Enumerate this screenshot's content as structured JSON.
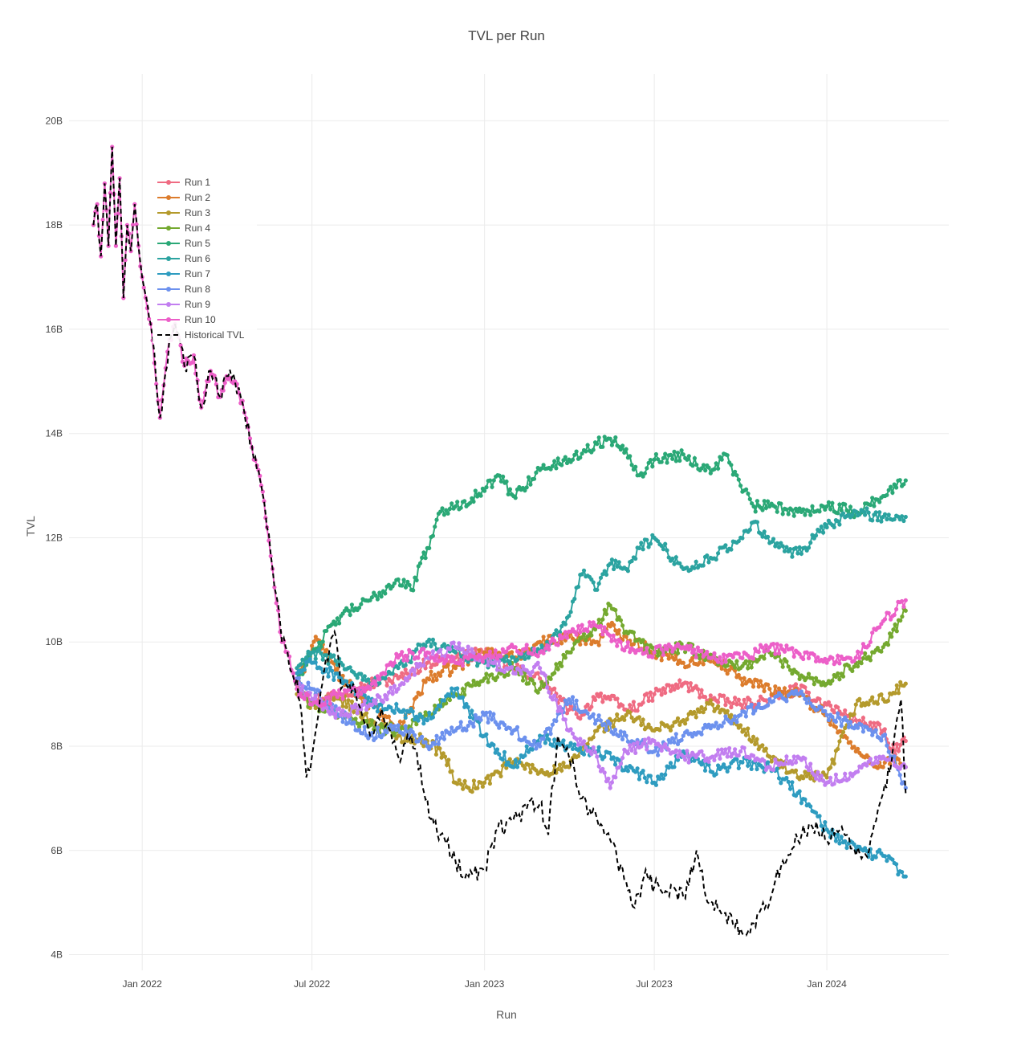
{
  "chart_data": {
    "type": "line",
    "title": "TVL per Run",
    "xlabel": "Run",
    "ylabel": "TVL",
    "x_range": [
      "2021-10-15",
      "2024-05-10"
    ],
    "ylim": [
      3.7,
      20.9
    ],
    "x_ticks": [
      {
        "date": "2022-01-01",
        "label": "Jan 2022"
      },
      {
        "date": "2022-07-01",
        "label": "Jul 2022"
      },
      {
        "date": "2023-01-01",
        "label": "Jan 2023"
      },
      {
        "date": "2023-07-01",
        "label": "Jul 2023"
      },
      {
        "date": "2024-01-01",
        "label": "Jan 2024"
      }
    ],
    "y_ticks": [
      {
        "value": 4,
        "label": "4B"
      },
      {
        "value": 6,
        "label": "6B"
      },
      {
        "value": 8,
        "label": "8B"
      },
      {
        "value": 10,
        "label": "10B"
      },
      {
        "value": 12,
        "label": "12B"
      },
      {
        "value": 14,
        "label": "14B"
      },
      {
        "value": 16,
        "label": "16B"
      },
      {
        "value": 18,
        "label": "18B"
      },
      {
        "value": 20,
        "label": "20B"
      }
    ],
    "grid": true,
    "legend_position": "top-left",
    "historical": {
      "name": "Historical TVL",
      "color": "#000000",
      "style": "dashed",
      "x": [
        "2021-11-10",
        "2021-11-14",
        "2021-11-18",
        "2021-11-22",
        "2021-11-26",
        "2021-11-30",
        "2021-12-04",
        "2021-12-08",
        "2021-12-12",
        "2021-12-16",
        "2021-12-20",
        "2021-12-24",
        "2021-12-28",
        "2022-01-01",
        "2022-01-10",
        "2022-01-20",
        "2022-01-30",
        "2022-02-05",
        "2022-02-15",
        "2022-02-25",
        "2022-03-05",
        "2022-03-15",
        "2022-03-25",
        "2022-04-01",
        "2022-04-10",
        "2022-04-20",
        "2022-04-30",
        "2022-05-05",
        "2022-05-08",
        "2022-05-11",
        "2022-05-14",
        "2022-05-20",
        "2022-05-30",
        "2022-06-05",
        "2022-06-10",
        "2022-06-13",
        "2022-06-15",
        "2022-06-20",
        "2022-06-25",
        "2022-07-01",
        "2022-07-10",
        "2022-07-20",
        "2022-07-25",
        "2022-08-01",
        "2022-08-10",
        "2022-08-20",
        "2022-09-01",
        "2022-09-15",
        "2022-10-01",
        "2022-10-15",
        "2022-11-01",
        "2022-11-05",
        "2022-11-08",
        "2022-11-15",
        "2022-12-01",
        "2022-12-15",
        "2023-01-01",
        "2023-01-15",
        "2023-02-01",
        "2023-02-15",
        "2023-03-01",
        "2023-03-10",
        "2023-03-20",
        "2023-04-01",
        "2023-04-15",
        "2023-05-01",
        "2023-05-15",
        "2023-06-01",
        "2023-06-10",
        "2023-06-20",
        "2023-07-01",
        "2023-07-15",
        "2023-08-01",
        "2023-08-15",
        "2023-08-25",
        "2023-09-01",
        "2023-09-15",
        "2023-10-01",
        "2023-10-15",
        "2023-10-25",
        "2023-11-01",
        "2023-11-15",
        "2023-12-01",
        "2023-12-15",
        "2024-01-01",
        "2024-01-15",
        "2024-02-01",
        "2024-02-15",
        "2024-03-01",
        "2024-03-10",
        "2024-03-20",
        "2024-03-25"
      ],
      "y": [
        18.0,
        18.4,
        17.4,
        18.8,
        17.6,
        19.5,
        17.6,
        18.9,
        16.6,
        18.0,
        17.5,
        18.4,
        17.6,
        17.0,
        16.1,
        14.3,
        15.8,
        16.1,
        15.3,
        15.5,
        14.5,
        15.2,
        14.7,
        15.1,
        15.0,
        14.4,
        13.5,
        13.3,
        13.0,
        12.7,
        12.2,
        11.4,
        10.0,
        9.8,
        9.4,
        9.2,
        9.3,
        8.6,
        7.4,
        7.8,
        9.0,
        9.9,
        10.2,
        9.1,
        9.2,
        8.8,
        8.2,
        8.6,
        7.8,
        8.2,
        7.0,
        6.6,
        6.5,
        6.3,
        5.8,
        5.5,
        5.6,
        6.4,
        6.6,
        6.8,
        6.9,
        6.3,
        8.2,
        7.8,
        7.0,
        6.6,
        6.2,
        5.4,
        4.9,
        5.5,
        5.3,
        5.2,
        5.1,
        6.0,
        5.1,
        5.0,
        4.8,
        4.5,
        4.6,
        5.0,
        5.0,
        5.8,
        6.2,
        6.5,
        6.2,
        6.4,
        5.9,
        6.0,
        7.1,
        7.7,
        8.9,
        7.1
      ]
    },
    "series": [
      {
        "name": "Run 1",
        "color": "#ef6b82",
        "x": [
          "2022-06-15",
          "2022-07-01",
          "2022-08-01",
          "2022-09-01",
          "2022-10-01",
          "2022-11-01",
          "2022-12-01",
          "2023-01-01",
          "2023-02-01",
          "2023-03-01",
          "2023-04-01",
          "2023-04-15",
          "2023-05-01",
          "2023-05-15",
          "2023-06-01",
          "2023-06-15",
          "2023-07-01",
          "2023-08-01",
          "2023-09-01",
          "2023-10-01",
          "2023-11-01",
          "2023-12-01",
          "2024-01-01",
          "2024-02-01",
          "2024-03-01",
          "2024-03-10",
          "2024-03-25"
        ],
        "y": [
          9.2,
          8.9,
          9.0,
          9.2,
          9.3,
          9.6,
          9.7,
          9.8,
          9.5,
          9.3,
          8.7,
          8.6,
          9.0,
          8.9,
          8.7,
          8.8,
          9.0,
          9.2,
          8.9,
          8.8,
          8.9,
          9.1,
          8.8,
          8.5,
          8.3,
          7.9,
          8.1
        ]
      },
      {
        "name": "Run 2",
        "color": "#dc7c2c",
        "x": [
          "2022-06-15",
          "2022-06-25",
          "2022-07-05",
          "2022-08-01",
          "2022-09-01",
          "2022-10-01",
          "2022-11-01",
          "2022-12-01",
          "2023-01-01",
          "2023-02-01",
          "2023-03-01",
          "2023-04-01",
          "2023-05-01",
          "2023-05-15",
          "2023-06-01",
          "2023-07-01",
          "2023-08-01",
          "2023-09-01",
          "2023-10-01",
          "2023-11-01",
          "2023-12-01",
          "2024-01-01",
          "2024-02-01",
          "2024-03-01",
          "2024-03-10",
          "2024-03-25"
        ],
        "y": [
          9.2,
          9.6,
          10.1,
          9.3,
          8.8,
          8.3,
          9.3,
          9.5,
          9.8,
          9.7,
          10.0,
          10.1,
          10.0,
          10.3,
          10.1,
          9.8,
          9.6,
          9.7,
          9.3,
          9.1,
          9.0,
          8.6,
          7.9,
          7.6,
          7.8,
          7.6
        ]
      },
      {
        "name": "Run 3",
        "color": "#b49a2c",
        "x": [
          "2022-06-15",
          "2022-07-01",
          "2022-08-01",
          "2022-09-01",
          "2022-10-01",
          "2022-11-01",
          "2022-11-20",
          "2022-12-01",
          "2022-12-15",
          "2023-01-01",
          "2023-02-01",
          "2023-03-01",
          "2023-04-01",
          "2023-05-01",
          "2023-06-01",
          "2023-07-01",
          "2023-08-01",
          "2023-09-01",
          "2023-10-01",
          "2023-11-01",
          "2023-12-01",
          "2024-01-01",
          "2024-02-01",
          "2024-03-01",
          "2024-03-10",
          "2024-03-25"
        ],
        "y": [
          9.0,
          8.8,
          8.9,
          8.5,
          8.2,
          8.1,
          7.8,
          7.3,
          7.2,
          7.3,
          7.7,
          7.5,
          7.6,
          8.3,
          8.6,
          8.3,
          8.5,
          8.8,
          8.4,
          7.8,
          7.4,
          7.4,
          8.8,
          8.9,
          9.0,
          9.2
        ]
      },
      {
        "name": "Run 4",
        "color": "#74a92f",
        "x": [
          "2022-06-15",
          "2022-07-01",
          "2022-08-01",
          "2022-09-01",
          "2022-10-01",
          "2022-11-01",
          "2022-12-01",
          "2023-01-01",
          "2023-02-01",
          "2023-03-01",
          "2023-04-01",
          "2023-05-01",
          "2023-05-15",
          "2023-06-01",
          "2023-07-01",
          "2023-08-01",
          "2023-09-01",
          "2023-10-01",
          "2023-11-01",
          "2023-12-01",
          "2024-01-01",
          "2024-02-01",
          "2024-03-01",
          "2024-03-10",
          "2024-03-25"
        ],
        "y": [
          9.1,
          8.8,
          8.6,
          8.4,
          8.3,
          8.6,
          9.0,
          9.3,
          9.5,
          9.1,
          9.8,
          10.3,
          10.7,
          10.2,
          9.8,
          9.9,
          9.7,
          9.5,
          9.8,
          9.4,
          9.2,
          9.6,
          9.9,
          10.1,
          10.6
        ]
      },
      {
        "name": "Run 5",
        "color": "#2aa876",
        "x": [
          "2022-06-15",
          "2022-07-01",
          "2022-08-01",
          "2022-09-01",
          "2022-10-01",
          "2022-10-15",
          "2022-11-01",
          "2022-11-15",
          "2022-12-01",
          "2023-01-01",
          "2023-01-15",
          "2023-02-01",
          "2023-03-01",
          "2023-04-01",
          "2023-05-01",
          "2023-05-15",
          "2023-06-01",
          "2023-06-15",
          "2023-07-01",
          "2023-08-01",
          "2023-08-15",
          "2023-09-01",
          "2023-09-15",
          "2023-10-01",
          "2023-10-15",
          "2023-11-01",
          "2023-12-01",
          "2024-01-01",
          "2024-02-01",
          "2024-03-01",
          "2024-03-25"
        ],
        "y": [
          9.3,
          9.8,
          10.5,
          10.8,
          11.2,
          11.0,
          11.8,
          12.5,
          12.6,
          12.9,
          13.2,
          12.8,
          13.3,
          13.5,
          13.8,
          13.9,
          13.7,
          13.2,
          13.5,
          13.6,
          13.4,
          13.3,
          13.6,
          13.0,
          12.6,
          12.6,
          12.5,
          12.6,
          12.5,
          12.8,
          13.1
        ]
      },
      {
        "name": "Run 6",
        "color": "#2ba3a0",
        "x": [
          "2022-06-15",
          "2022-07-01",
          "2022-08-01",
          "2022-09-01",
          "2022-10-01",
          "2022-11-01",
          "2022-12-01",
          "2023-01-01",
          "2023-02-01",
          "2023-03-01",
          "2023-04-01",
          "2023-04-15",
          "2023-05-01",
          "2023-05-15",
          "2023-06-01",
          "2023-06-15",
          "2023-07-01",
          "2023-08-01",
          "2023-09-01",
          "2023-10-01",
          "2023-10-15",
          "2023-11-01",
          "2023-12-01",
          "2024-01-01",
          "2024-02-01",
          "2024-03-01",
          "2024-03-25"
        ],
        "y": [
          9.5,
          9.8,
          9.6,
          9.2,
          9.5,
          10.0,
          9.8,
          9.6,
          9.7,
          9.8,
          10.5,
          11.3,
          11.0,
          11.5,
          11.4,
          11.8,
          12.0,
          11.4,
          11.6,
          12.0,
          12.3,
          11.9,
          11.7,
          12.2,
          12.5,
          12.4,
          12.4
        ]
      },
      {
        "name": "Run 7",
        "color": "#2e9cc0",
        "x": [
          "2022-06-15",
          "2022-07-01",
          "2022-08-01",
          "2022-09-01",
          "2022-10-01",
          "2022-11-01",
          "2022-12-01",
          "2023-01-01",
          "2023-02-01",
          "2023-03-01",
          "2023-04-01",
          "2023-05-01",
          "2023-06-01",
          "2023-07-01",
          "2023-08-01",
          "2023-09-01",
          "2023-10-01",
          "2023-11-01",
          "2023-12-01",
          "2024-01-01",
          "2024-02-01",
          "2024-03-01",
          "2024-03-25"
        ],
        "y": [
          9.4,
          9.6,
          9.3,
          8.8,
          8.7,
          8.5,
          9.1,
          8.2,
          7.6,
          8.2,
          8.0,
          7.9,
          7.6,
          7.3,
          7.9,
          7.5,
          7.7,
          7.6,
          7.1,
          6.4,
          6.0,
          5.9,
          5.5
        ]
      },
      {
        "name": "Run 8",
        "color": "#6c91ee",
        "x": [
          "2022-06-15",
          "2022-07-01",
          "2022-08-01",
          "2022-09-01",
          "2022-10-01",
          "2022-11-01",
          "2022-12-01",
          "2023-01-01",
          "2023-02-01",
          "2023-03-01",
          "2023-04-01",
          "2023-05-01",
          "2023-06-01",
          "2023-07-01",
          "2023-08-01",
          "2023-09-01",
          "2023-10-01",
          "2023-11-01",
          "2023-12-01",
          "2024-01-01",
          "2024-02-01",
          "2024-03-01",
          "2024-03-25"
        ],
        "y": [
          9.3,
          9.1,
          8.6,
          8.2,
          8.4,
          8.0,
          8.3,
          8.6,
          8.3,
          8.0,
          8.9,
          8.5,
          8.2,
          7.9,
          8.2,
          8.4,
          8.6,
          8.9,
          9.0,
          8.6,
          8.4,
          8.2,
          7.2
        ]
      },
      {
        "name": "Run 9",
        "color": "#c27ef0",
        "x": [
          "2022-06-15",
          "2022-07-01",
          "2022-08-01",
          "2022-09-01",
          "2022-10-01",
          "2022-11-01",
          "2022-12-01",
          "2023-01-01",
          "2023-02-01",
          "2023-03-01",
          "2023-04-01",
          "2023-05-01",
          "2023-05-15",
          "2023-06-01",
          "2023-07-01",
          "2023-08-01",
          "2023-09-01",
          "2023-10-01",
          "2023-11-01",
          "2023-12-01",
          "2024-01-01",
          "2024-02-01",
          "2024-03-01",
          "2024-03-25"
        ],
        "y": [
          9.2,
          8.9,
          8.6,
          8.8,
          9.1,
          9.7,
          9.9,
          9.7,
          9.4,
          9.5,
          8.3,
          7.8,
          7.2,
          7.9,
          8.1,
          7.8,
          7.8,
          7.9,
          7.6,
          7.8,
          7.3,
          7.5,
          7.8,
          7.6
        ]
      },
      {
        "name": "Run 10",
        "color": "#ec5fc8",
        "x": [
          "2021-11-10",
          "2021-11-14",
          "2021-11-18",
          "2021-11-22",
          "2021-11-26",
          "2021-11-30",
          "2021-12-04",
          "2021-12-08",
          "2021-12-12",
          "2021-12-16",
          "2021-12-20",
          "2021-12-24",
          "2021-12-28",
          "2022-01-01",
          "2022-01-10",
          "2022-01-20",
          "2022-01-30",
          "2022-02-05",
          "2022-02-15",
          "2022-02-25",
          "2022-03-05",
          "2022-03-15",
          "2022-03-25",
          "2022-04-01",
          "2022-04-10",
          "2022-04-20",
          "2022-04-30",
          "2022-05-05",
          "2022-05-08",
          "2022-05-11",
          "2022-05-14",
          "2022-05-20",
          "2022-05-30",
          "2022-06-05",
          "2022-06-15",
          "2022-07-01",
          "2022-08-01",
          "2022-09-01",
          "2022-10-01",
          "2022-11-01",
          "2022-12-01",
          "2023-01-01",
          "2023-02-01",
          "2023-03-01",
          "2023-04-01",
          "2023-05-01",
          "2023-06-01",
          "2023-07-01",
          "2023-08-01",
          "2023-09-01",
          "2023-10-01",
          "2023-11-01",
          "2023-12-01",
          "2024-01-01",
          "2024-02-01",
          "2024-03-01",
          "2024-03-25"
        ],
        "y": [
          18.0,
          18.4,
          17.4,
          18.8,
          17.6,
          19.5,
          17.6,
          18.9,
          16.6,
          18.0,
          17.5,
          18.4,
          17.6,
          17.0,
          16.1,
          14.3,
          15.8,
          16.1,
          15.3,
          15.5,
          14.5,
          15.2,
          14.7,
          15.1,
          15.0,
          14.4,
          13.5,
          13.3,
          13.0,
          12.7,
          12.2,
          11.4,
          10.0,
          9.8,
          9.1,
          8.8,
          9.0,
          9.1,
          9.7,
          9.8,
          9.6,
          9.7,
          9.9,
          9.8,
          10.2,
          10.3,
          9.9,
          9.8,
          9.9,
          9.7,
          9.7,
          9.9,
          9.8,
          9.6,
          9.7,
          10.4,
          10.8
        ]
      }
    ]
  }
}
